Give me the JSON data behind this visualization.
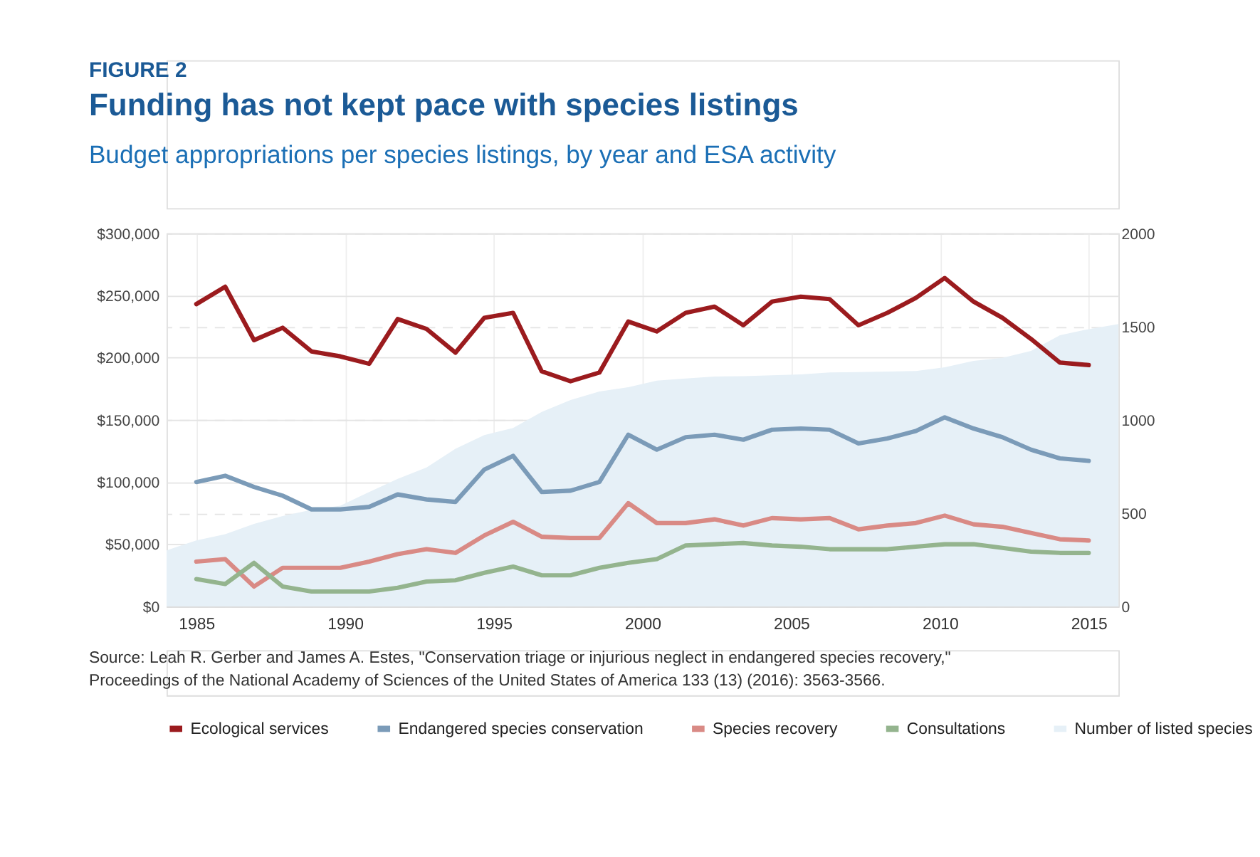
{
  "chart_data": {
    "type": "line",
    "title": "Funding has not kept pace with species listings",
    "subtitle": "Budget appropriations per species listings, by year and ESA activity",
    "annotations": [
      "FIGURE 2",
      "Source: Leah R. Gerber and James A. Estes, \"Conservation triage or injurious neglect in endangered species recovery,\" Proceedings of the National Academy of Sciences of the United States of America 133 (13) (2016): 3563-3566."
    ],
    "x": [
      1985.0,
      1985.97,
      1986.94,
      1987.9,
      1988.87,
      1989.84,
      1990.81,
      1991.77,
      1992.74,
      1993.71,
      1994.68,
      1995.65,
      1996.61,
      1997.58,
      1998.55,
      1999.52,
      2000.48,
      2001.45,
      2002.42,
      2003.39,
      2004.35,
      2005.32,
      2006.29,
      2007.26,
      2008.23,
      2009.19,
      2010.16,
      2011.13,
      2012.1,
      2013.06,
      2014.03,
      2015.0
    ],
    "series": [
      {
        "name": "Ecological services",
        "color": "#9b1b1e",
        "values": [
          243000,
          257000,
          214000,
          224000,
          205000,
          201000,
          195000,
          231000,
          223000,
          204000,
          232000,
          236000,
          189000,
          181000,
          188000,
          229000,
          221000,
          236000,
          241000,
          226000,
          245000,
          249000,
          247000,
          226000,
          236000,
          248000,
          264000,
          245000,
          232000,
          215000,
          196000,
          194000
        ]
      },
      {
        "name": "Endangered species conservation",
        "color": "#7b9bb8",
        "values": [
          100000,
          105000,
          96000,
          89000,
          78000,
          78000,
          80000,
          90000,
          86000,
          84000,
          110000,
          121000,
          92000,
          93000,
          100000,
          138000,
          126000,
          136000,
          138000,
          134000,
          142000,
          143000,
          142000,
          131000,
          135000,
          141000,
          152000,
          143000,
          136000,
          126000,
          119000,
          117000
        ]
      },
      {
        "name": "Species recovery",
        "color": "#d98a85",
        "values": [
          36000,
          38000,
          16000,
          31000,
          31000,
          31000,
          36000,
          42000,
          46000,
          43000,
          57000,
          68000,
          56000,
          55000,
          55000,
          83000,
          67000,
          67000,
          70000,
          65000,
          71000,
          70000,
          71000,
          62000,
          65000,
          67000,
          73000,
          66000,
          64000,
          59000,
          54000,
          53000
        ]
      },
      {
        "name": "Consultations",
        "color": "#94b48e",
        "values": [
          22000,
          18000,
          35000,
          16000,
          12000,
          12000,
          12000,
          15000,
          20000,
          21000,
          27000,
          32000,
          25000,
          25000,
          31000,
          35000,
          38000,
          49000,
          50000,
          51000,
          49000,
          48000,
          46000,
          46000,
          46000,
          48000,
          50000,
          50000,
          47000,
          44000,
          43000,
          43000
        ]
      },
      {
        "name": "Number of listed species",
        "color": "#e6f0f7",
        "type": "area",
        "axis": "y2",
        "x": [
          1984,
          1985.0,
          1985.97,
          1986.94,
          1987.9,
          1988.87,
          1989.84,
          1990.81,
          1991.77,
          1992.74,
          1993.71,
          1994.68,
          1995.65,
          1996.61,
          1997.58,
          1998.55,
          1999.52,
          2000.48,
          2001.45,
          2002.42,
          2003.39,
          2004.35,
          2005.32,
          2006.29,
          2007.26,
          2008.23,
          2009.19,
          2010.16,
          2011.13,
          2012.1,
          2013.06,
          2014.03,
          2015.0,
          2016
        ],
        "values": [
          300,
          354,
          387,
          442,
          484,
          518,
          540,
          613,
          684,
          745,
          845,
          918,
          956,
          1042,
          1106,
          1152,
          1175,
          1210,
          1221,
          1232,
          1234,
          1239,
          1243,
          1254,
          1256,
          1259,
          1261,
          1281,
          1316,
          1332,
          1369,
          1453,
          1486,
          1513
        ]
      }
    ],
    "xlim": [
      1984,
      2016
    ],
    "xticks": [
      1985,
      1990,
      1995,
      2000,
      2005,
      2010,
      2015
    ],
    "ylim": [
      0,
      300000
    ],
    "yticks": [
      {
        "value": 0,
        "label": "$0"
      },
      {
        "value": 50000,
        "label": "$50,000"
      },
      {
        "value": 100000,
        "label": "$100,000"
      },
      {
        "value": 150000,
        "label": "$150,000"
      },
      {
        "value": 200000,
        "label": "$200,000"
      },
      {
        "value": 250000,
        "label": "$250,000"
      },
      {
        "value": 300000,
        "label": "$300,000"
      }
    ],
    "y2lim": [
      0,
      2000
    ],
    "y2ticks": [
      0,
      500,
      1000,
      1500,
      2000
    ],
    "grid": true,
    "legend": "bottom",
    "marker": "none",
    "line_style": "solid"
  }
}
